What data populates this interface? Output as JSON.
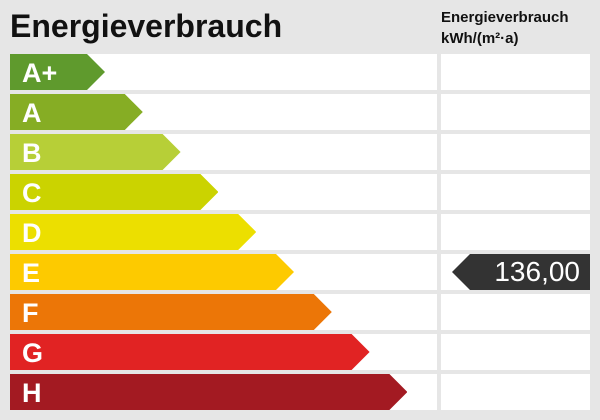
{
  "title": "Energieverbrauch",
  "column_header": {
    "line1": "Energieverbrauch",
    "line2": "kWh/(m²·a)"
  },
  "classes": [
    {
      "label": "A+",
      "color": "#5f9a2d"
    },
    {
      "label": "A",
      "color": "#86ad24"
    },
    {
      "label": "B",
      "color": "#b7cf37"
    },
    {
      "label": "C",
      "color": "#cbd300"
    },
    {
      "label": "D",
      "color": "#ecdf00"
    },
    {
      "label": "E",
      "color": "#fdca00"
    },
    {
      "label": "F",
      "color": "#ec7607"
    },
    {
      "label": "G",
      "color": "#e12323"
    },
    {
      "label": "H",
      "color": "#a31a22"
    }
  ],
  "indicator": {
    "class": "E",
    "value": "136,00",
    "color": "#333333"
  }
}
